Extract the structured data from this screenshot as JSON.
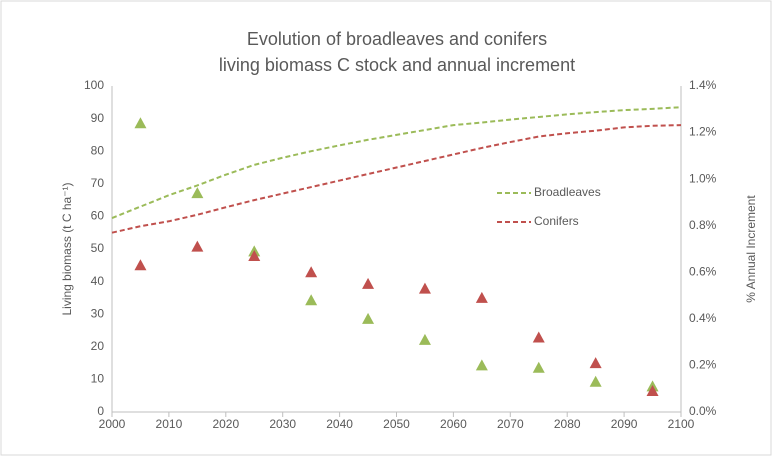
{
  "chart_data": {
    "type": "line",
    "title": [
      "Evolution of broadleaves and conifers",
      "living biomass C stock and annual increment"
    ],
    "ylabel": "Living biomass (t C ha⁻¹)",
    "y2label": "% Annual Increment",
    "xlim": [
      2000,
      2100
    ],
    "xticks": [
      2000,
      2010,
      2020,
      2030,
      2040,
      2050,
      2060,
      2070,
      2080,
      2090,
      2100
    ],
    "ylim": [
      0,
      100
    ],
    "yticks": [
      0,
      10,
      20,
      30,
      40,
      50,
      60,
      70,
      80,
      90,
      100
    ],
    "y2lim": [
      0,
      1.4
    ],
    "y2ticks": [
      {
        "value": 0,
        "label": "0.0%"
      },
      {
        "value": 0.2,
        "label": "0.2%"
      },
      {
        "value": 0.4,
        "label": "0.4%"
      },
      {
        "value": 0.6,
        "label": "0.6%"
      },
      {
        "value": 0.8,
        "label": "0.8%"
      },
      {
        "value": 1.0,
        "label": "1.0%"
      },
      {
        "value": 1.2,
        "label": "1.2%"
      },
      {
        "value": 1.4,
        "label": "1.4%"
      }
    ],
    "grid": false,
    "legend": "right",
    "series": [
      {
        "name": "Broadleaves",
        "color": "#9bbb59",
        "style": "dashed",
        "x": [
          2000,
          2005,
          2010,
          2015,
          2020,
          2025,
          2030,
          2035,
          2040,
          2045,
          2050,
          2055,
          2060,
          2065,
          2070,
          2075,
          2080,
          2085,
          2090,
          2095,
          2100
        ],
        "values": [
          59.5,
          63,
          66.5,
          69.5,
          72.8,
          75.8,
          78,
          80,
          81.8,
          83.5,
          85,
          86.5,
          88,
          88.8,
          89.7,
          90.5,
          91.3,
          92,
          92.6,
          93,
          93.5
        ]
      },
      {
        "name": "Conifers",
        "color": "#c0504d",
        "style": "dashed",
        "x": [
          2000,
          2005,
          2010,
          2015,
          2020,
          2025,
          2030,
          2035,
          2040,
          2045,
          2050,
          2055,
          2060,
          2065,
          2070,
          2075,
          2080,
          2085,
          2090,
          2095,
          2100
        ],
        "values": [
          55,
          57,
          58.5,
          60.5,
          62.8,
          65,
          67,
          69,
          71,
          73,
          75,
          77,
          79,
          81,
          82.8,
          84.5,
          85.5,
          86.3,
          87.3,
          87.8,
          88
        ]
      },
      {
        "color": "#9bbb59",
        "style": "triangle",
        "axis": "y2",
        "x": [
          2005,
          2015,
          2025,
          2035,
          2045,
          2055,
          2065,
          2075,
          2085,
          2095
        ],
        "values": [
          1.24,
          0.94,
          0.69,
          0.48,
          0.4,
          0.31,
          0.2,
          0.19,
          0.13,
          0.11
        ]
      },
      {
        "color": "#c0504d",
        "style": "triangle",
        "axis": "y2",
        "x": [
          2005,
          2015,
          2025,
          2035,
          2045,
          2055,
          2065,
          2075,
          2085,
          2095
        ],
        "values": [
          0.63,
          0.71,
          0.67,
          0.6,
          0.55,
          0.53,
          0.49,
          0.32,
          0.21,
          0.09
        ]
      }
    ]
  }
}
